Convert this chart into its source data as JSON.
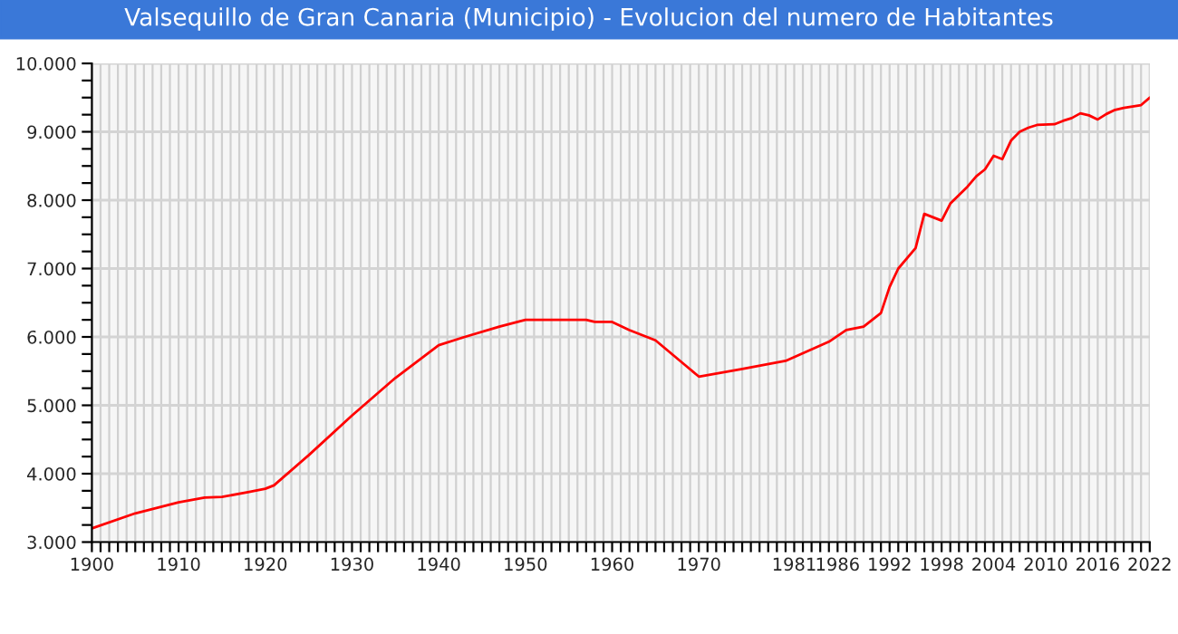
{
  "chart_data": {
    "type": "line",
    "title": "Valsequillo de Gran Canaria (Municipio) - Evolucion del numero de Habitantes",
    "series": [
      {
        "color": "#ff0000",
        "x": [
          1900,
          1905,
          1910,
          1913,
          1915,
          1918,
          1920,
          1921,
          1925,
          1930,
          1935,
          1940,
          1943,
          1947,
          1950,
          1957,
          1958,
          1960,
          1962,
          1965,
          1970,
          1975,
          1980,
          1985,
          1987,
          1989,
          1991,
          1992,
          1993,
          1995,
          1996,
          1997,
          1998,
          1999,
          2001,
          2002,
          2003,
          2004,
          2005,
          2006,
          2007,
          2008,
          2009,
          2011,
          2012,
          2013,
          2014,
          2015,
          2016,
          2017,
          2018,
          2019,
          2020,
          2021,
          2022
        ],
        "values": [
          3200,
          3420,
          3580,
          3650,
          3660,
          3730,
          3780,
          3830,
          4270,
          4850,
          5400,
          5880,
          6000,
          6150,
          6250,
          6250,
          6220,
          6220,
          6100,
          5950,
          5420,
          5530,
          5650,
          5930,
          6100,
          6150,
          6350,
          6730,
          7000,
          7300,
          7800,
          7750,
          7700,
          7950,
          8200,
          8350,
          8450,
          8650,
          8600,
          8870,
          9000,
          9060,
          9100,
          9110,
          9160,
          9200,
          9270,
          9240,
          9180,
          9260,
          9320,
          9350,
          9370,
          9390,
          9500
        ]
      }
    ],
    "xlim": [
      1900,
      2022
    ],
    "ylim": [
      3000,
      10000
    ],
    "xticks": [
      1900,
      {
        "value": 1901,
        "label": null
      },
      {
        "value": 1902,
        "label": null
      },
      {
        "value": 1903,
        "label": null
      },
      {
        "value": 1904,
        "label": null
      },
      {
        "value": 1905,
        "label": null
      },
      {
        "value": 1906,
        "label": null
      },
      {
        "value": 1907,
        "label": null
      },
      {
        "value": 1908,
        "label": null
      },
      {
        "value": 1909,
        "label": null
      },
      1910,
      {
        "value": 1911,
        "label": null
      },
      {
        "value": 1912,
        "label": null
      },
      {
        "value": 1913,
        "label": null
      },
      {
        "value": 1914,
        "label": null
      },
      {
        "value": 1915,
        "label": null
      },
      {
        "value": 1916,
        "label": null
      },
      {
        "value": 1917,
        "label": null
      },
      {
        "value": 1918,
        "label": null
      },
      {
        "value": 1919,
        "label": null
      },
      1920,
      {
        "value": 1921,
        "label": null
      },
      {
        "value": 1922,
        "label": null
      },
      {
        "value": 1923,
        "label": null
      },
      {
        "value": 1924,
        "label": null
      },
      {
        "value": 1925,
        "label": null
      },
      {
        "value": 1926,
        "label": null
      },
      {
        "value": 1927,
        "label": null
      },
      {
        "value": 1928,
        "label": null
      },
      {
        "value": 1929,
        "label": null
      },
      1930,
      {
        "value": 1931,
        "label": null
      },
      {
        "value": 1932,
        "label": null
      },
      {
        "value": 1933,
        "label": null
      },
      {
        "value": 1934,
        "label": null
      },
      {
        "value": 1935,
        "label": null
      },
      {
        "value": 1936,
        "label": null
      },
      {
        "value": 1937,
        "label": null
      },
      {
        "value": 1938,
        "label": null
      },
      {
        "value": 1939,
        "label": null
      },
      1940,
      {
        "value": 1941,
        "label": null
      },
      {
        "value": 1942,
        "label": null
      },
      {
        "value": 1943,
        "label": null
      },
      {
        "value": 1944,
        "label": null
      },
      {
        "value": 1945,
        "label": null
      },
      {
        "value": 1946,
        "label": null
      },
      {
        "value": 1947,
        "label": null
      },
      {
        "value": 1948,
        "label": null
      },
      {
        "value": 1949,
        "label": null
      },
      1950,
      {
        "value": 1951,
        "label": null
      },
      {
        "value": 1952,
        "label": null
      },
      {
        "value": 1953,
        "label": null
      },
      {
        "value": 1954,
        "label": null
      },
      {
        "value": 1955,
        "label": null
      },
      {
        "value": 1956,
        "label": null
      },
      {
        "value": 1957,
        "label": null
      },
      {
        "value": 1958,
        "label": null
      },
      {
        "value": 1959,
        "label": null
      },
      1960,
      {
        "value": 1961,
        "label": null
      },
      {
        "value": 1962,
        "label": null
      },
      {
        "value": 1963,
        "label": null
      },
      {
        "value": 1964,
        "label": null
      },
      {
        "value": 1965,
        "label": null
      },
      {
        "value": 1966,
        "label": null
      },
      {
        "value": 1967,
        "label": null
      },
      {
        "value": 1968,
        "label": null
      },
      {
        "value": 1969,
        "label": null
      },
      1970,
      {
        "value": 1971,
        "label": null
      },
      {
        "value": 1972,
        "label": null
      },
      {
        "value": 1973,
        "label": null
      },
      {
        "value": 1974,
        "label": null
      },
      {
        "value": 1975,
        "label": null
      },
      {
        "value": 1976,
        "label": null
      },
      {
        "value": 1977,
        "label": null
      },
      {
        "value": 1978,
        "label": null
      },
      {
        "value": 1979,
        "label": null
      },
      {
        "value": 1980,
        "label": null
      },
      1981,
      {
        "value": 1982,
        "label": null
      },
      {
        "value": 1983,
        "label": null
      },
      {
        "value": 1984,
        "label": null
      },
      {
        "value": 1985,
        "label": null
      },
      1986,
      {
        "value": 1987,
        "label": null
      },
      {
        "value": 1988,
        "label": null
      },
      {
        "value": 1989,
        "label": null
      },
      {
        "value": 1990,
        "label": null
      },
      {
        "value": 1991,
        "label": null
      },
      1992,
      {
        "value": 1993,
        "label": null
      },
      {
        "value": 1994,
        "label": null
      },
      {
        "value": 1995,
        "label": null
      },
      {
        "value": 1996,
        "label": null
      },
      {
        "value": 1997,
        "label": null
      },
      1998,
      {
        "value": 1999,
        "label": null
      },
      {
        "value": 2000,
        "label": null
      },
      {
        "value": 2001,
        "label": null
      },
      {
        "value": 2002,
        "label": null
      },
      {
        "value": 2003,
        "label": null
      },
      2004,
      {
        "value": 2005,
        "label": null
      },
      {
        "value": 2006,
        "label": null
      },
      {
        "value": 2007,
        "label": null
      },
      {
        "value": 2008,
        "label": null
      },
      {
        "value": 2009,
        "label": null
      },
      2010,
      {
        "value": 2011,
        "label": null
      },
      {
        "value": 2012,
        "label": null
      },
      {
        "value": 2013,
        "label": null
      },
      {
        "value": 2014,
        "label": null
      },
      {
        "value": 2015,
        "label": null
      },
      2016,
      {
        "value": 2017,
        "label": null
      },
      {
        "value": 2018,
        "label": null
      },
      {
        "value": 2019,
        "label": null
      },
      {
        "value": 2020,
        "label": null
      },
      {
        "value": 2021,
        "label": null
      },
      2022
    ],
    "yticks": [
      {
        "value": 3000,
        "label": "3.000"
      },
      {
        "value": 3250,
        "label": null
      },
      {
        "value": 3500,
        "label": null
      },
      {
        "value": 3750,
        "label": null
      },
      {
        "value": 4000,
        "label": "4.000"
      },
      {
        "value": 4250,
        "label": null
      },
      {
        "value": 4500,
        "label": null
      },
      {
        "value": 4750,
        "label": null
      },
      {
        "value": 5000,
        "label": "5.000"
      },
      {
        "value": 5250,
        "label": null
      },
      {
        "value": 5500,
        "label": null
      },
      {
        "value": 5750,
        "label": null
      },
      {
        "value": 6000,
        "label": "6.000"
      },
      {
        "value": 6250,
        "label": null
      },
      {
        "value": 6500,
        "label": null
      },
      {
        "value": 6750,
        "label": null
      },
      {
        "value": 7000,
        "label": "7.000"
      },
      {
        "value": 7250,
        "label": null
      },
      {
        "value": 7500,
        "label": null
      },
      {
        "value": 7750,
        "label": null
      },
      {
        "value": 8000,
        "label": "8.000"
      },
      {
        "value": 8250,
        "label": null
      },
      {
        "value": 8500,
        "label": null
      },
      {
        "value": 8750,
        "label": null
      },
      {
        "value": 9000,
        "label": "9.000"
      },
      {
        "value": 9250,
        "label": null
      },
      {
        "value": 9500,
        "label": null
      },
      {
        "value": 9750,
        "label": null
      },
      {
        "value": 10000,
        "label": "10.000"
      }
    ],
    "grid": true,
    "marker": "none",
    "line_style": "solid"
  }
}
